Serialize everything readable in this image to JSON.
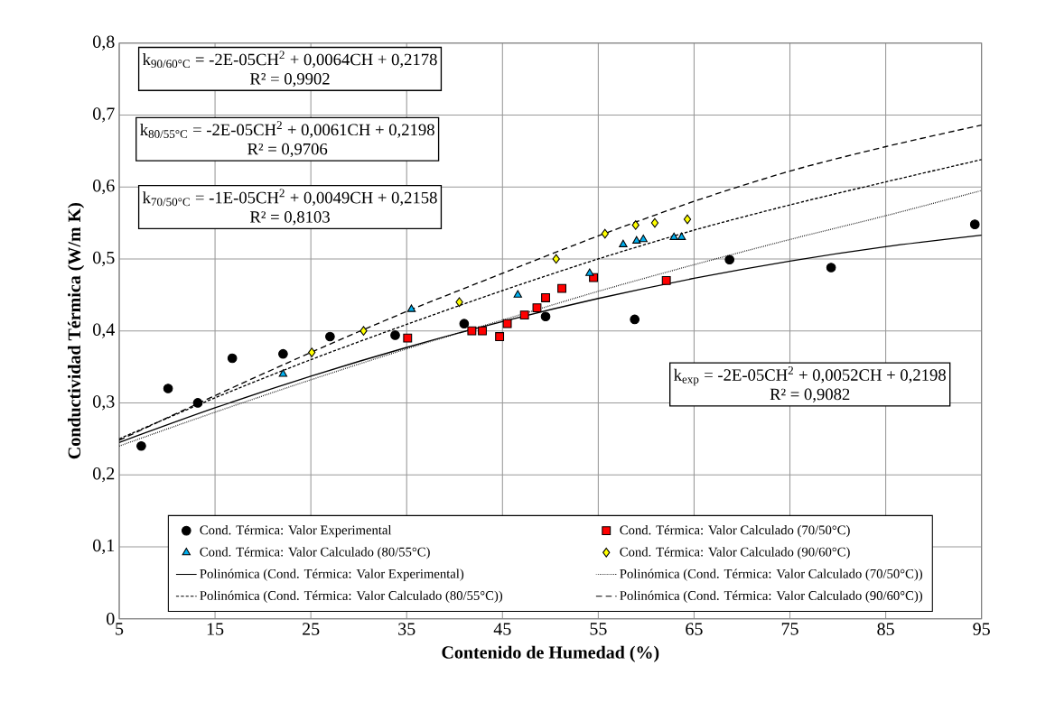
{
  "chart_data": {
    "type": "scatter",
    "xlabel": "Contenido de Humedad (%)",
    "ylabel": "Conductividad Térmica (W/m K)",
    "xlim": [
      5,
      95
    ],
    "ylim": [
      0,
      0.8
    ],
    "xticks": [
      5,
      15,
      25,
      35,
      45,
      55,
      65,
      75,
      85,
      95
    ],
    "yticks": [
      0,
      {
        "value": 0.1,
        "label": "0,1"
      },
      {
        "value": 0.2,
        "label": "0,2"
      },
      {
        "value": 0.3,
        "label": "0,3"
      },
      {
        "value": 0.4,
        "label": "0,4"
      },
      {
        "value": 0.5,
        "label": "0,5"
      },
      {
        "value": 0.6,
        "label": "0,6"
      },
      {
        "value": 0.7,
        "label": "0,7"
      },
      {
        "value": 0.8,
        "label": "0,8"
      }
    ],
    "grid": true,
    "legend": "bottom",
    "series": [
      {
        "name": "Cond. Térmica: Valor Experimental",
        "type": "scatter",
        "marker": "circle",
        "color": "#000000",
        "x": [
          7.3,
          10.1,
          13.2,
          16.8,
          22.1,
          27,
          33.8,
          41,
          49.5,
          58.8,
          68.7,
          79.3,
          94.3
        ],
        "values": [
          0.24,
          0.32,
          0.3,
          0.362,
          0.368,
          0.392,
          0.394,
          0.41,
          0.42,
          0.416,
          0.499,
          0.488,
          0.548
        ]
      },
      {
        "name": "Cond. Térmica: Valor Calculado (70/50°C)",
        "type": "scatter",
        "marker": "square",
        "color": "#ff0000",
        "x": [
          35.1,
          41.8,
          42.9,
          44.7,
          45.5,
          47.3,
          48.6,
          49.5,
          51.2,
          54.5,
          62.1
        ],
        "values": [
          0.39,
          0.4,
          0.4,
          0.392,
          0.41,
          0.422,
          0.432,
          0.446,
          0.459,
          0.474,
          0.47
        ]
      },
      {
        "name": "Cond. Térmica: Valor Calculado (80/55°C)",
        "type": "scatter",
        "marker": "triangle",
        "color": "#00b0f0",
        "x": [
          22.1,
          35.5,
          46.6,
          54.1,
          57.6,
          59,
          59.7,
          62.9,
          63.7
        ],
        "values": [
          0.34,
          0.43,
          0.45,
          0.48,
          0.52,
          0.525,
          0.527,
          0.53,
          0.53
        ]
      },
      {
        "name": "Cond. Térmica: Valor Calculado (90/60°C)",
        "type": "scatter",
        "marker": "diamond",
        "color": "#ffff00",
        "x": [
          25.1,
          30.5,
          40.5,
          50.6,
          55.7,
          58.9,
          60.9,
          64.3
        ],
        "values": [
          0.37,
          0.4,
          0.44,
          0.5,
          0.535,
          0.547,
          0.55,
          0.555
        ]
      },
      {
        "name": "Polinómica (Cond. Térmica: Valor Experimental)",
        "type": "line",
        "line_style": "solid",
        "color": "#000000",
        "x": [
          5,
          15,
          25,
          35,
          45,
          55,
          65,
          75,
          85,
          95
        ],
        "values": [
          0.245,
          0.293,
          0.337,
          0.377,
          0.413,
          0.445,
          0.473,
          0.497,
          0.517,
          0.533
        ]
      },
      {
        "name": "Polinómica (Cond. Térmica: Valor Calculado (70/50°C))",
        "type": "line",
        "line_style": "dotted",
        "color": "#000000",
        "x": [
          5,
          15,
          25,
          35,
          45,
          55,
          65,
          75,
          85,
          95
        ],
        "values": [
          0.24,
          0.287,
          0.332,
          0.375,
          0.415,
          0.455,
          0.492,
          0.527,
          0.56,
          0.595
        ]
      },
      {
        "name": "Polinómica (Cond. Térmica: Valor Calculado (80/55°C))",
        "type": "line",
        "line_style": "dashed",
        "color": "#000000",
        "x": [
          5,
          15,
          25,
          35,
          45,
          55,
          65,
          75,
          85,
          95
        ],
        "values": [
          0.25,
          0.307,
          0.36,
          0.409,
          0.456,
          0.5,
          0.54,
          0.575,
          0.607,
          0.638
        ]
      },
      {
        "name": "Polinómica (Cond. Térmica: Valor Calculado (90/60°C))",
        "type": "line",
        "line_style": "dashed",
        "color": "#000000",
        "x": [
          5,
          15,
          25,
          35,
          45,
          55,
          65,
          75,
          85,
          95
        ],
        "values": [
          0.248,
          0.31,
          0.37,
          0.427,
          0.48,
          0.532,
          0.58,
          0.622,
          0.656,
          0.686
        ]
      }
    ],
    "annotations": [
      "k$_{90/60°C}$ = -2E-05CH$^{2}$ + 0,0064CH + 0,2178",
      "R² = 0,9902",
      "k$_{80/55°C}$ = -2E-05CH$^{2}$ + 0,0061CH + 0,2198",
      "R² = 0,9706",
      "k$_{70/50°C}$ = -1E-05CH$^{2}$ + 0,0049CH + 0,2158",
      "R² = 0,8103",
      "k$_{exp}$ = -2E-05CH$^{2}$ + 0,0052CH + 0,2198",
      "R² = 0,9082"
    ]
  }
}
